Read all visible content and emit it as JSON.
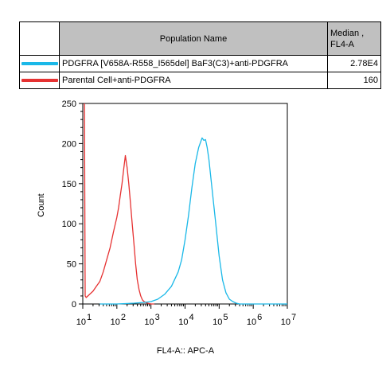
{
  "legend": {
    "header": {
      "name": "Population Name",
      "stat_line1": "Median ,",
      "stat_line2": "FL4-A"
    },
    "rows": [
      {
        "name": "PDGFRA [V658A-R558_I565del] BaF3(C3)+anti-PDGFRA",
        "value": "2.78E4",
        "color": "#1ab8e8"
      },
      {
        "name": "Parental Cell+anti-PDGFRA",
        "value": "160",
        "color": "#e63232"
      }
    ]
  },
  "chart_data": {
    "type": "line",
    "xlabel": "FL4-A:: APC-A",
    "ylabel": "Count",
    "xscale": "log",
    "xlim": [
      1,
      7
    ],
    "ylim": [
      0,
      250
    ],
    "yticks": [
      0,
      50,
      100,
      150,
      200,
      250
    ],
    "xtick_labels": [
      {
        "base": "10",
        "exp": "1"
      },
      {
        "base": "10",
        "exp": "2"
      },
      {
        "base": "10",
        "exp": "3"
      },
      {
        "base": "10",
        "exp": "4"
      },
      {
        "base": "10",
        "exp": "5"
      },
      {
        "base": "10",
        "exp": "6"
      },
      {
        "base": "10",
        "exp": "7"
      }
    ],
    "series": [
      {
        "name": "Parental Cell+anti-PDGFRA",
        "color": "#e63232",
        "x": [
          1.05,
          1.07,
          1.1,
          1.2,
          1.3,
          1.4,
          1.5,
          1.6,
          1.7,
          1.8,
          1.9,
          2.0,
          2.05,
          2.1,
          2.15,
          2.2,
          2.25,
          2.3,
          2.35,
          2.4,
          2.45,
          2.5,
          2.55,
          2.6,
          2.65,
          2.7,
          2.75,
          2.8,
          2.9,
          3.0,
          3.1
        ],
        "y": [
          250,
          10,
          8,
          12,
          16,
          22,
          28,
          40,
          55,
          70,
          90,
          108,
          120,
          135,
          150,
          168,
          185,
          170,
          150,
          125,
          100,
          75,
          50,
          30,
          18,
          10,
          5,
          3,
          1,
          0,
          0
        ]
      },
      {
        "name": "PDGFRA [V658A-R558_I565del] BaF3(C3)+anti-PDGFRA",
        "color": "#1ab8e8",
        "x": [
          1.5,
          2.0,
          2.5,
          2.8,
          3.0,
          3.2,
          3.4,
          3.6,
          3.8,
          3.9,
          4.0,
          4.1,
          4.2,
          4.3,
          4.4,
          4.5,
          4.55,
          4.6,
          4.65,
          4.7,
          4.8,
          4.9,
          5.0,
          5.1,
          5.2,
          5.3,
          5.4,
          5.5,
          5.6,
          5.8,
          6.0,
          6.5,
          7.0
        ],
        "y": [
          0,
          0,
          1,
          2,
          3,
          6,
          12,
          22,
          40,
          55,
          80,
          110,
          145,
          175,
          195,
          207,
          204,
          205,
          195,
          180,
          140,
          100,
          60,
          30,
          14,
          6,
          3,
          1,
          0,
          0,
          0,
          0,
          0
        ]
      }
    ]
  }
}
